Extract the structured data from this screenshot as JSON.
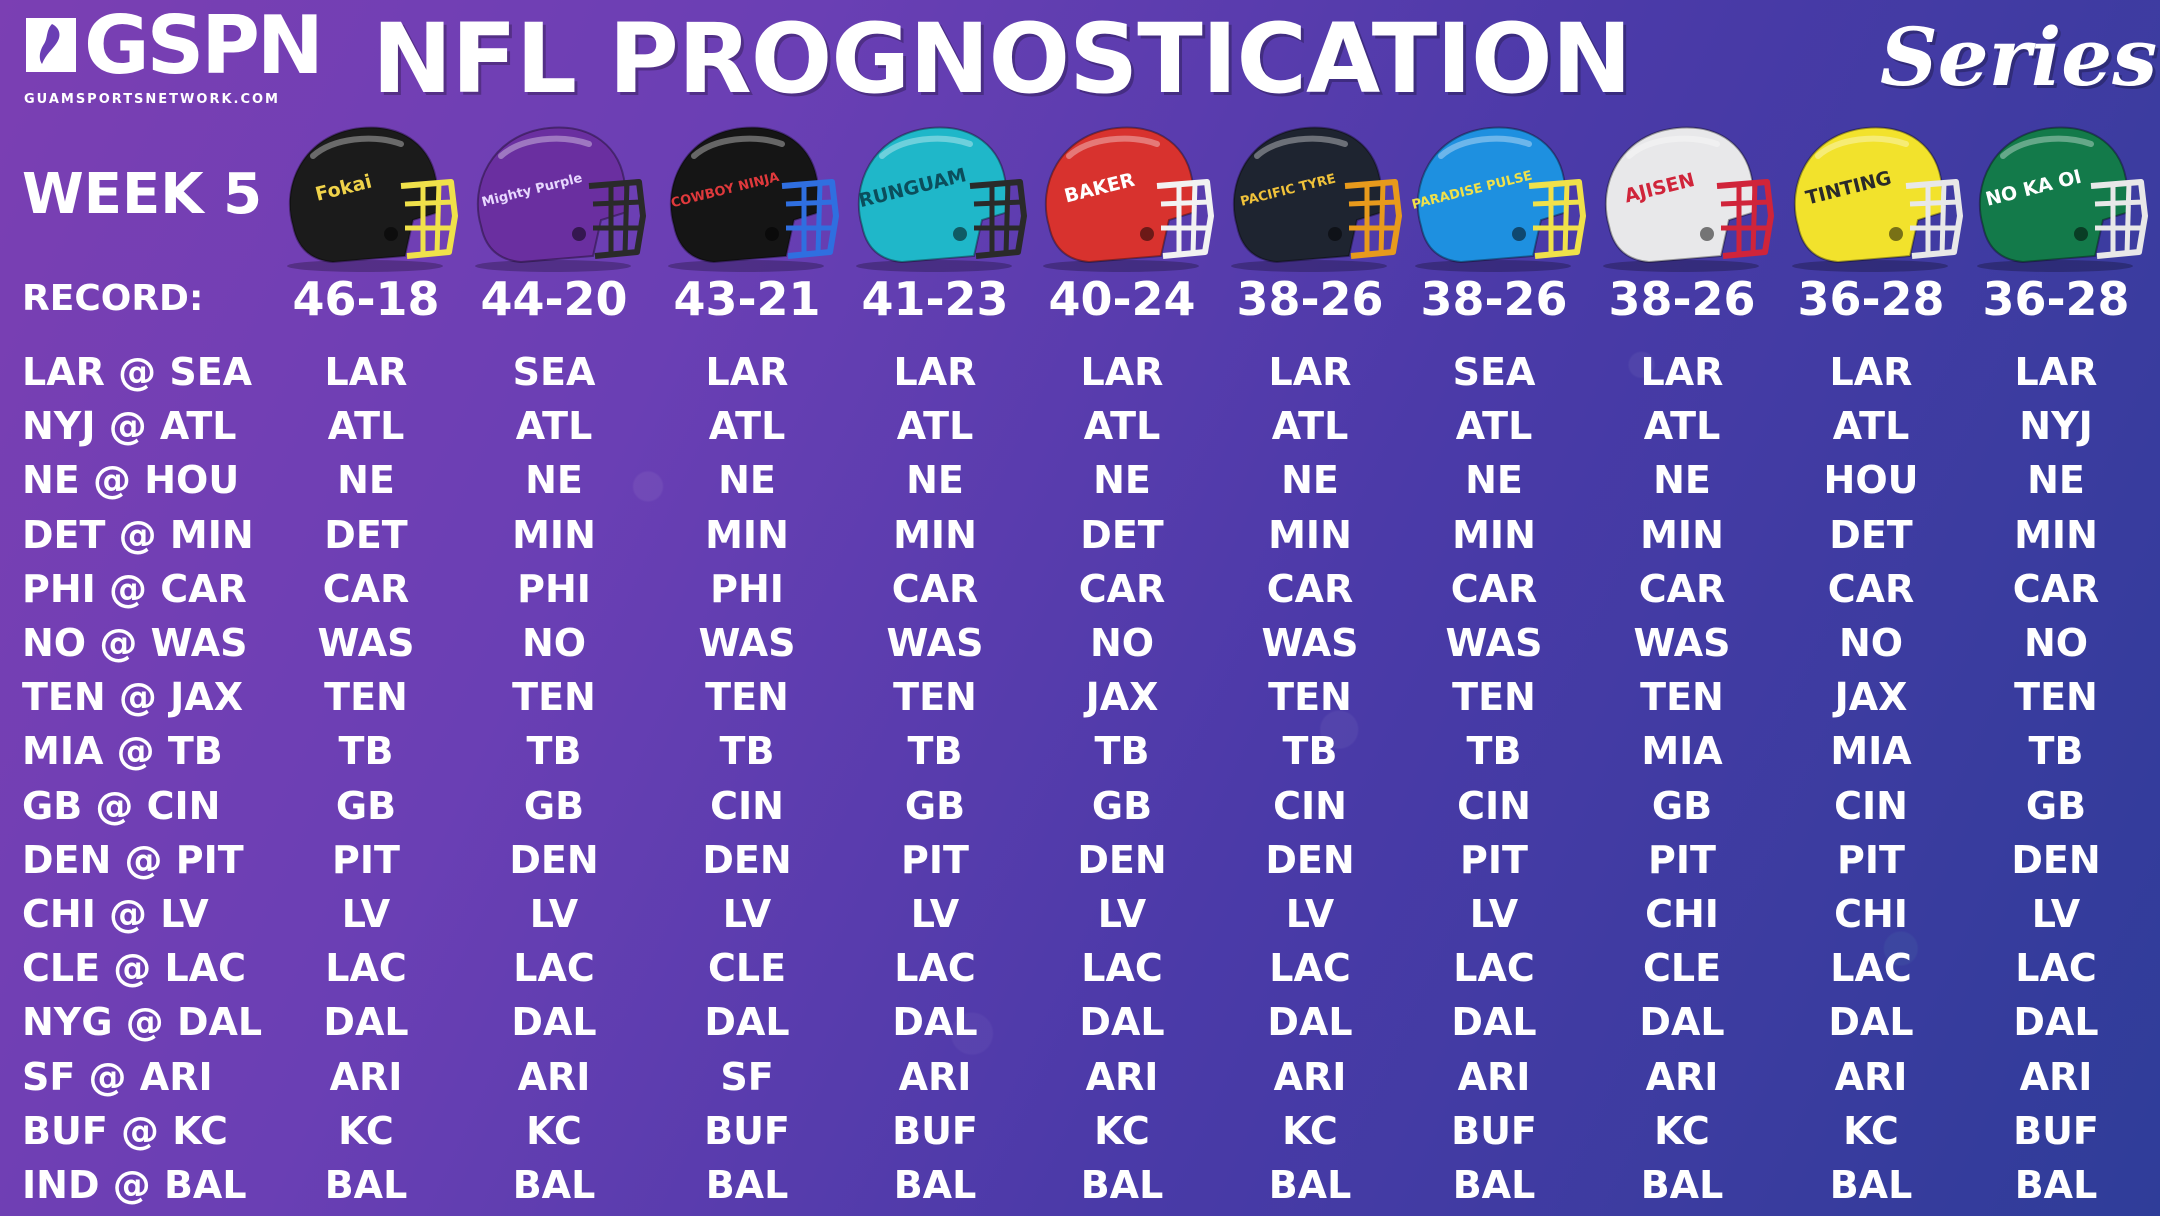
{
  "header": {
    "logo_text": "GSPN",
    "logo_url": "GUAMSPORTSNETWORK.COM",
    "title": "NFL PROGNOSTICATION",
    "title_suffix": "Series"
  },
  "week_label": "WEEK 5",
  "record_label": "RECORD:",
  "matchups": [
    "LAR @ SEA",
    "NYJ @ ATL",
    "NE @ HOU",
    "DET @ MIN",
    "PHI @ CAR",
    "NO @ WAS",
    "TEN @ JAX",
    "MIA @ TB",
    "GB @ CIN",
    "DEN @ PIT",
    "CHI @ LV",
    "CLE @ LAC",
    "NYG @ DAL",
    "SF @ ARI",
    "BUF @ KC",
    "IND @ BAL"
  ],
  "pickers": [
    {
      "helmet_text": "Fokai",
      "shell_color": "#1b1b1b",
      "mask_color": "#f0e14a",
      "logo_color": "#f0d34a",
      "record": "46-18",
      "picks": [
        "LAR",
        "ATL",
        "NE",
        "DET",
        "CAR",
        "WAS",
        "TEN",
        "TB",
        "GB",
        "PIT",
        "LV",
        "LAC",
        "DAL",
        "ARI",
        "KC",
        "BAL"
      ]
    },
    {
      "helmet_text": "Mighty Purple",
      "shell_color": "#6a2fa0",
      "mask_color": "#2a2a2a",
      "logo_color": "#e8d8ff",
      "record": "44-20",
      "picks": [
        "SEA",
        "ATL",
        "NE",
        "MIN",
        "PHI",
        "NO",
        "TEN",
        "TB",
        "GB",
        "DEN",
        "LV",
        "LAC",
        "DAL",
        "ARI",
        "KC",
        "BAL"
      ]
    },
    {
      "helmet_text": "COWBOY NINJA",
      "shell_color": "#151515",
      "mask_color": "#2f6fe0",
      "logo_color": "#e0393c",
      "record": "43-21",
      "picks": [
        "LAR",
        "ATL",
        "NE",
        "MIN",
        "PHI",
        "WAS",
        "TEN",
        "TB",
        "CIN",
        "DEN",
        "LV",
        "CLE",
        "DAL",
        "SF",
        "BUF",
        "BAL"
      ]
    },
    {
      "helmet_text": "RUNGUAM",
      "shell_color": "#1fb7c9",
      "mask_color": "#2a2a2a",
      "logo_color": "#0b4e5c",
      "record": "41-23",
      "picks": [
        "LAR",
        "ATL",
        "NE",
        "MIN",
        "CAR",
        "WAS",
        "TEN",
        "TB",
        "GB",
        "PIT",
        "LV",
        "LAC",
        "DAL",
        "ARI",
        "BUF",
        "BAL"
      ]
    },
    {
      "helmet_text": "BAKER",
      "shell_color": "#d8322e",
      "mask_color": "#f2f2f2",
      "logo_color": "#ffffff",
      "record": "40-24",
      "picks": [
        "LAR",
        "ATL",
        "NE",
        "DET",
        "CAR",
        "NO",
        "JAX",
        "TB",
        "GB",
        "DEN",
        "LV",
        "LAC",
        "DAL",
        "ARI",
        "KC",
        "BAL"
      ]
    },
    {
      "helmet_text": "PACIFIC TYRE",
      "shell_color": "#1e2430",
      "mask_color": "#e89a1c",
      "logo_color": "#f0c23a",
      "record": "38-26",
      "picks": [
        "LAR",
        "ATL",
        "NE",
        "MIN",
        "CAR",
        "WAS",
        "TEN",
        "TB",
        "CIN",
        "DEN",
        "LV",
        "LAC",
        "DAL",
        "ARI",
        "KC",
        "BAL"
      ]
    },
    {
      "helmet_text": "PARADISE PULSE",
      "shell_color": "#1e90e0",
      "mask_color": "#f0e14a",
      "logo_color": "#f0e14a",
      "record": "38-26",
      "picks": [
        "SEA",
        "ATL",
        "NE",
        "MIN",
        "CAR",
        "WAS",
        "TEN",
        "TB",
        "CIN",
        "PIT",
        "LV",
        "LAC",
        "DAL",
        "ARI",
        "BUF",
        "BAL"
      ]
    },
    {
      "helmet_text": "AJISEN",
      "shell_color": "#e8e8ea",
      "mask_color": "#d0243a",
      "logo_color": "#d0243a",
      "record": "38-26",
      "picks": [
        "LAR",
        "ATL",
        "NE",
        "MIN",
        "CAR",
        "WAS",
        "TEN",
        "MIA",
        "GB",
        "PIT",
        "CHI",
        "CLE",
        "DAL",
        "ARI",
        "KC",
        "BAL"
      ]
    },
    {
      "helmet_text": "TINTING",
      "shell_color": "#f2e22c",
      "mask_color": "#e8e8e8",
      "logo_color": "#2a2a2a",
      "record": "36-28",
      "picks": [
        "LAR",
        "ATL",
        "HOU",
        "DET",
        "CAR",
        "NO",
        "JAX",
        "MIA",
        "CIN",
        "PIT",
        "CHI",
        "LAC",
        "DAL",
        "ARI",
        "KC",
        "BAL"
      ]
    },
    {
      "helmet_text": "NO KA OI",
      "shell_color": "#137a4a",
      "mask_color": "#e8e8e8",
      "logo_color": "#ffffff",
      "record": "36-28",
      "picks": [
        "LAR",
        "NYJ",
        "NE",
        "MIN",
        "CAR",
        "NO",
        "TEN",
        "TB",
        "GB",
        "DEN",
        "LV",
        "LAC",
        "DAL",
        "ARI",
        "BUF",
        "BAL"
      ]
    }
  ]
}
